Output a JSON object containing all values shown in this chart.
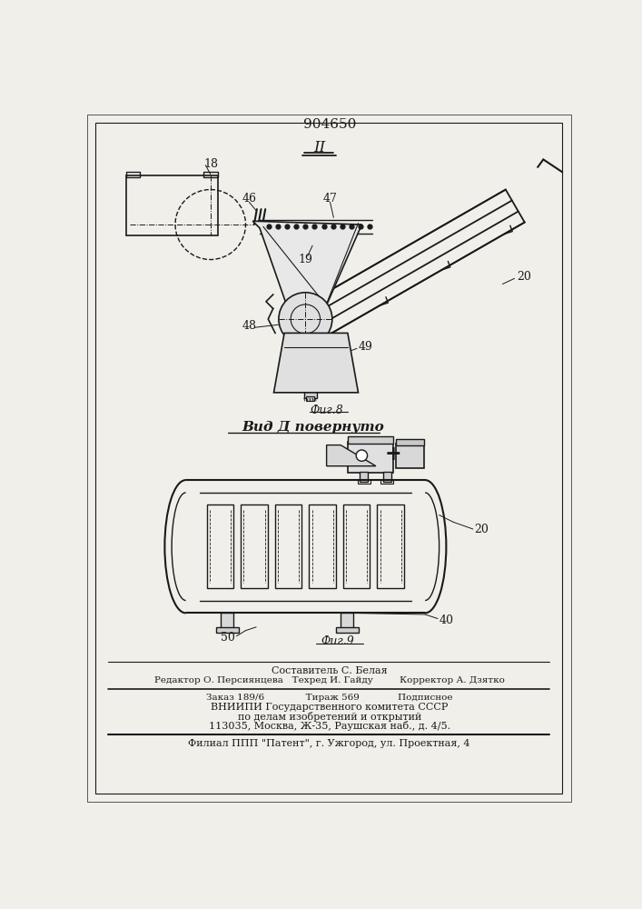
{
  "patent_number": "904650",
  "bg_color": "#f0efea",
  "line_color": "#1a1a1a",
  "footer_line1": "Составитель С. Белая",
  "footer_line2": "Редактор О. Персиянцева   Техред И. Гайду         Корректор А. Дзятко",
  "footer_line3": "Заказ 189/6              Тираж 569             Подписное",
  "footer_line4": "ВНИИПИ Государственного комитета СССР",
  "footer_line5": "по делам изобретений и открытий",
  "footer_line6": "113035, Москва, Ж-35, Раушская наб., д. 4/5.",
  "footer_line7": "Филиал ППП \"Патент\", г. Ужгород, ул. Проектная, 4"
}
